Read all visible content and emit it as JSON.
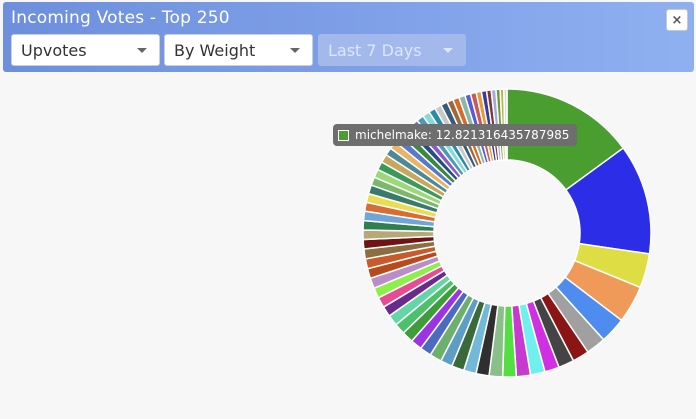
{
  "window": {
    "title": "Incoming Votes - Top 250",
    "close_label": "×"
  },
  "filters": {
    "vote_type": {
      "selected": "Upvotes"
    },
    "sort": {
      "selected": "By Weight"
    },
    "period": {
      "selected": "Last 7 Days",
      "disabled": true
    }
  },
  "tooltip": {
    "label": "michelmake: 12.821316435787985",
    "color": "#4a9e30"
  },
  "chart_data": {
    "type": "pie",
    "donut": true,
    "values": [
      12.82,
      10.6,
      3.3,
      3.6,
      2.5,
      1.9,
      1.6,
      1.5,
      1.4,
      1.4,
      1.35,
      1.3,
      1.3,
      1.25,
      1.2,
      1.2,
      1.15,
      1.15,
      1.1,
      1.1,
      1.1,
      1.05,
      1.05,
      1.0,
      1.0,
      1.0,
      1.0,
      0.95,
      0.95,
      0.95,
      0.9,
      0.9,
      0.9,
      0.9,
      0.85,
      0.85,
      0.85,
      0.8,
      0.8,
      0.8,
      0.8,
      0.75,
      0.75,
      0.75,
      0.75,
      0.7,
      0.7,
      0.7,
      0.7,
      0.65,
      0.65,
      0.65,
      0.6,
      0.6,
      0.6,
      0.55,
      0.55,
      0.5,
      0.5,
      0.45,
      0.45,
      0.4,
      0.35,
      0.3
    ],
    "colors": [
      "#4a9e30",
      "#2b2ee6",
      "#dedd44",
      "#f09a59",
      "#4f8cef",
      "#a0a0a0",
      "#8b1414",
      "#444444",
      "#d12fe3",
      "#6ff0ef",
      "#c73ad0",
      "#55dd44",
      "#8bbf8a",
      "#2f2f2f",
      "#72b8d8",
      "#3a6a3a",
      "#5e9ec4",
      "#6cb06c",
      "#4c6bc0",
      "#9b34e3",
      "#3f9c3a",
      "#4cc06a",
      "#64d6a6",
      "#6a2a8c",
      "#e64c96",
      "#8df04a",
      "#b98dc8",
      "#b84b1e",
      "#c85a2c",
      "#8a7040",
      "#6e1414",
      "#b8a878",
      "#2f7f4f",
      "#6fa6d8",
      "#d86c32",
      "#eadd52",
      "#3a7a6a",
      "#7ab86a",
      "#9ad87a",
      "#3a9a5a",
      "#c8a858",
      "#4a8a9a",
      "#e8b468",
      "#5a7ac8",
      "#3a8a3a",
      "#2a4a8a",
      "#8a5ac8",
      "#4a9ab8",
      "#8ad8d8",
      "#2a8aaa",
      "#c8c8c8",
      "#3a5a7a",
      "#9a6a3a",
      "#d86a2a",
      "#8ab8a8",
      "#5a5ad8",
      "#c85a5a",
      "#e89a3a",
      "#3a3a9a",
      "#7a3a3a",
      "#a8a8d8",
      "#6a9a3a",
      "#b8b848",
      "#d8d8d8"
    ]
  }
}
